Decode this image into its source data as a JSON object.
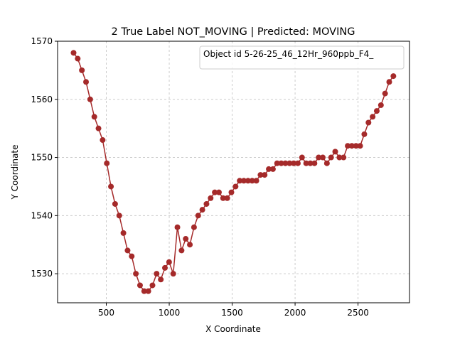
{
  "chart_data": {
    "type": "line",
    "title": "2 True Label NOT_MOVING | Predicted: MOVING",
    "x_label": "X Coordinate",
    "y_label": "Y Coordinate",
    "x": [
      240,
      273,
      306,
      339,
      372,
      405,
      438,
      471,
      504,
      537,
      570,
      603,
      636,
      669,
      702,
      735,
      768,
      801,
      834,
      867,
      900,
      933,
      966,
      999,
      1032,
      1065,
      1098,
      1131,
      1164,
      1197,
      1230,
      1263,
      1296,
      1329,
      1362,
      1395,
      1428,
      1461,
      1494,
      1527,
      1560,
      1593,
      1626,
      1659,
      1692,
      1725,
      1758,
      1791,
      1824,
      1857,
      1890,
      1923,
      1956,
      1989,
      2022,
      2055,
      2088,
      2121,
      2154,
      2187,
      2220,
      2253,
      2286,
      2319,
      2352,
      2385,
      2418,
      2451,
      2484,
      2517,
      2550,
      2583,
      2616,
      2649,
      2682,
      2715,
      2748,
      2781
    ],
    "series": [
      {
        "name": "Object id 5-26-25_46_12Hr_960ppb_F4_",
        "color": "#a52a2a",
        "values": [
          1568,
          1567,
          1565,
          1563,
          1560,
          1557,
          1555,
          1553,
          1549,
          1545,
          1542,
          1540,
          1537,
          1534,
          1533,
          1530,
          1528,
          1527,
          1527,
          1528,
          1530,
          1529,
          1531,
          1532,
          1530,
          1538,
          1534,
          1536,
          1535,
          1538,
          1540,
          1541,
          1542,
          1543,
          1544,
          1544,
          1543,
          1543,
          1544,
          1545,
          1546,
          1546,
          1546,
          1546,
          1546,
          1547,
          1547,
          1548,
          1548,
          1549,
          1549,
          1549,
          1549,
          1549,
          1549,
          1550,
          1549,
          1549,
          1549,
          1550,
          1550,
          1549,
          1550,
          1551,
          1550,
          1550,
          1552,
          1552,
          1552,
          1552,
          1554,
          1556,
          1557,
          1558,
          1559,
          1561,
          1563,
          1564
        ]
      }
    ],
    "xlim": [
      113,
      2909
    ],
    "ylim": [
      1525,
      1570
    ],
    "xticks": [
      500,
      1000,
      1500,
      2000,
      2500
    ],
    "yticks": [
      1530,
      1540,
      1550,
      1560,
      1570
    ],
    "grid": true,
    "legend": "upper right"
  }
}
